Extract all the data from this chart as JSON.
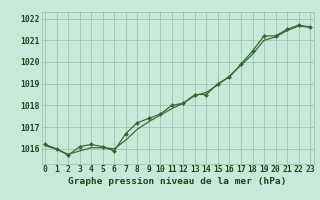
{
  "title": "Graphe pression niveau de la mer (hPa)",
  "x_labels": [
    "0",
    "1",
    "2",
    "3",
    "4",
    "5",
    "6",
    "7",
    "8",
    "9",
    "10",
    "11",
    "12",
    "13",
    "14",
    "15",
    "16",
    "17",
    "18",
    "19",
    "20",
    "21",
    "22",
    "23"
  ],
  "hours": [
    0,
    1,
    2,
    3,
    4,
    5,
    6,
    7,
    8,
    9,
    10,
    11,
    12,
    13,
    14,
    15,
    16,
    17,
    18,
    19,
    20,
    21,
    22,
    23
  ],
  "pressure_data": [
    1016.2,
    1016.0,
    1015.7,
    1016.1,
    1016.2,
    1016.1,
    1015.9,
    1016.7,
    1017.2,
    1017.4,
    1017.6,
    1018.0,
    1018.1,
    1018.5,
    1018.5,
    1019.0,
    1019.3,
    1019.9,
    1020.5,
    1021.2,
    1021.2,
    1021.5,
    1021.7,
    1021.6
  ],
  "pressure_smooth": [
    1016.15,
    1015.98,
    1015.75,
    1015.9,
    1016.05,
    1016.05,
    1016.0,
    1016.4,
    1016.9,
    1017.25,
    1017.55,
    1017.85,
    1018.1,
    1018.45,
    1018.6,
    1018.95,
    1019.35,
    1019.85,
    1020.35,
    1021.0,
    1021.15,
    1021.45,
    1021.65,
    1021.6
  ],
  "ylim": [
    1015.3,
    1022.3
  ],
  "yticks": [
    1016,
    1017,
    1018,
    1019,
    1020,
    1021,
    1022
  ],
  "line_color": "#2d6a2d",
  "marker_color": "#2d6a2d",
  "bg_color": "#c8e8d8",
  "grid_color": "#99bbaa",
  "title_color": "#1a4a1a",
  "title_fontsize": 6.8,
  "tick_fontsize": 5.8
}
